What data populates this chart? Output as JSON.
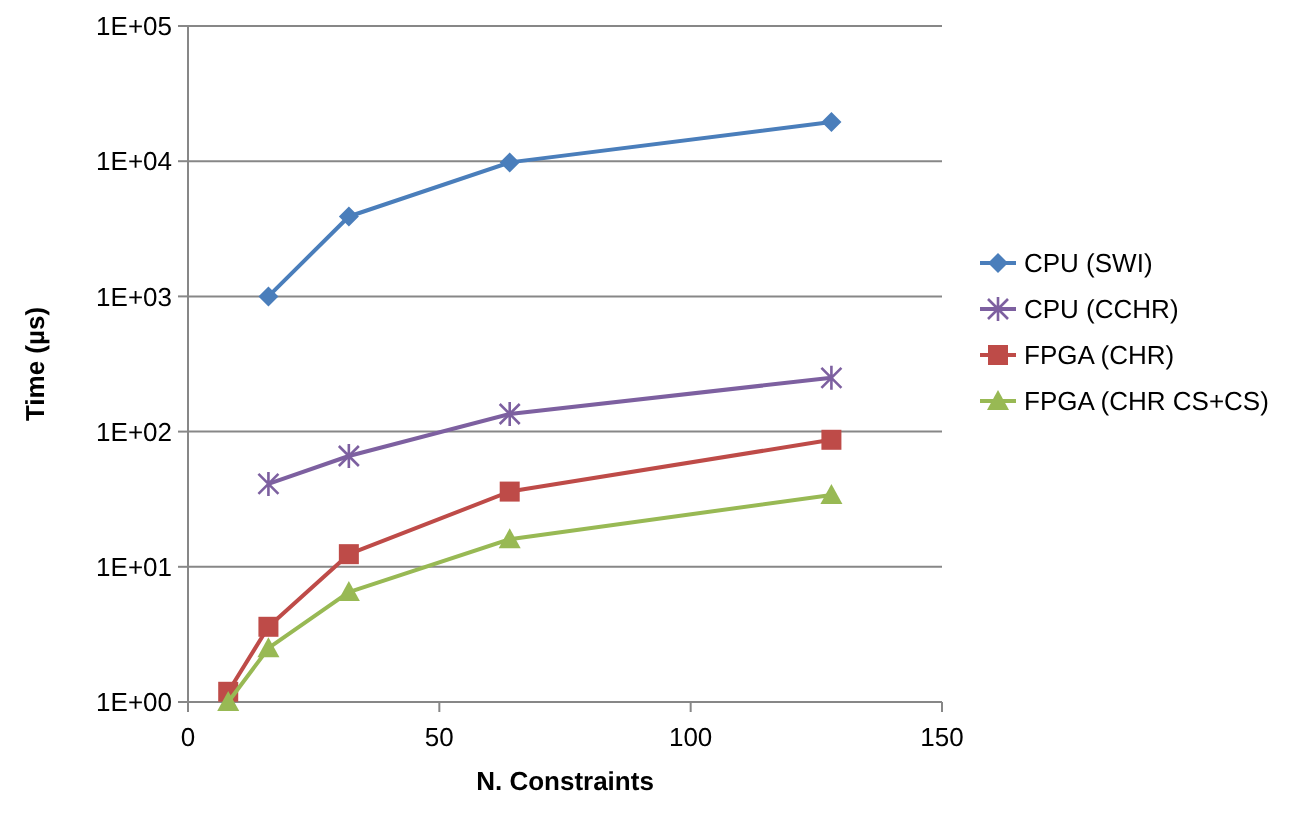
{
  "chart_data": {
    "type": "line",
    "xlabel": "N. Constraints",
    "ylabel": "Time (µs)",
    "log": "y",
    "grid": "y",
    "legend": "right",
    "xlim": [
      0,
      150
    ],
    "xticks": [
      0,
      50,
      100,
      150
    ],
    "ylim": [
      1,
      100000
    ],
    "yticks": [
      {
        "value": 1,
        "label": "1E+00"
      },
      {
        "value": 10,
        "label": "1E+01"
      },
      {
        "value": 100,
        "label": "1E+02"
      },
      {
        "value": 1000,
        "label": "1E+03"
      },
      {
        "value": 10000,
        "label": "1E+04"
      },
      {
        "value": 100000,
        "label": "1E+05"
      }
    ],
    "series": [
      {
        "name": "CPU (SWI)",
        "color": "#4a7ebb",
        "marker": "diamond",
        "x": [
          16,
          32,
          64,
          128
        ],
        "values": [
          1000,
          3900,
          9800,
          19500
        ]
      },
      {
        "name": "CPU (CCHR)",
        "color": "#7d60a0",
        "marker": "cross",
        "x": [
          16,
          32,
          64,
          128
        ],
        "values": [
          41,
          66,
          135,
          250
        ]
      },
      {
        "name": "FPGA (CHR)",
        "color": "#be4b48",
        "marker": "square",
        "x": [
          8,
          16,
          32,
          64,
          128
        ],
        "values": [
          1.19,
          3.6,
          12.4,
          36,
          87
        ]
      },
      {
        "name": "FPGA (CHR CS+CS)",
        "color": "#98b954",
        "marker": "triangle",
        "x": [
          8,
          16,
          32,
          64,
          128
        ],
        "values": [
          1.0,
          2.5,
          6.5,
          16,
          34
        ]
      }
    ]
  }
}
